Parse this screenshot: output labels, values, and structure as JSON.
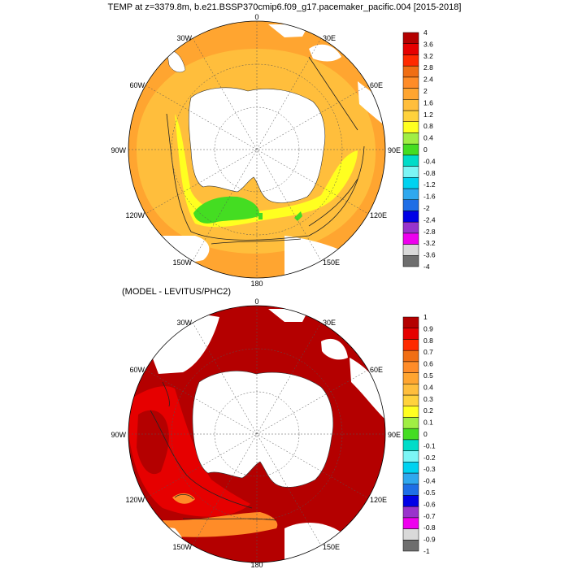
{
  "top_panel": {
    "title": "TEMP at z=3379.8m, b.e21.BSSP370cmip6.f09_g17.pacemaker_pacific.004 [2015-2018]",
    "lon_labels": {
      "n": "0",
      "ne": "30E",
      "e_up": "60E",
      "e": "90E",
      "e_dn": "120E",
      "se": "150E",
      "s": "180",
      "sw": "150W",
      "w_dn": "120W",
      "w": "90W",
      "w_up": "60W",
      "nw": "30W"
    },
    "colorbar": {
      "colors": [
        "#6e6e6e",
        "#d9d9d9",
        "#ee00ee",
        "#9933cc",
        "#0000e6",
        "#1e6ee6",
        "#2fa8ee",
        "#00d2f0",
        "#7cf5f5",
        "#00dcc8",
        "#44dd22",
        "#a0ee44",
        "#ffff20",
        "#ffd23c",
        "#ffbe3c",
        "#ffa530",
        "#ff8c28",
        "#f06e14",
        "#ff2a00",
        "#e60000",
        "#b40000"
      ],
      "labels": [
        "4",
        "3.6",
        "3.2",
        "2.8",
        "2.4",
        "2",
        "1.6",
        "1.2",
        "0.8",
        "0.4",
        "0",
        "-0.4",
        "-0.8",
        "-1.2",
        "-1.6",
        "-2",
        "-2.4",
        "-2.8",
        "-3.2",
        "-3.6",
        "-4"
      ]
    }
  },
  "bottom_panel": {
    "title": "(MODEL - LEVITUS/PHC2)",
    "lon_labels": {
      "n": "0",
      "ne": "30E",
      "e_up": "60E",
      "e": "90E",
      "e_dn": "120E",
      "se": "150E",
      "s": "180",
      "sw": "150W",
      "w_dn": "120W",
      "w": "90W",
      "w_up": "60W",
      "nw": "30W"
    },
    "colorbar": {
      "colors": [
        "#6e6e6e",
        "#d9d9d9",
        "#ee00ee",
        "#9933cc",
        "#0000e6",
        "#1e6ee6",
        "#2fa8ee",
        "#00d2f0",
        "#7cf5f5",
        "#00dcc8",
        "#44dd22",
        "#a0ee44",
        "#ffff20",
        "#ffd23c",
        "#ffbe3c",
        "#ffa530",
        "#ff8c28",
        "#f06e14",
        "#ff2a00",
        "#e60000",
        "#b40000"
      ],
      "labels": [
        "1",
        "0.9",
        "0.8",
        "0.7",
        "0.6",
        "0.5",
        "0.4",
        "0.3",
        "0.2",
        "0.1",
        "0",
        "-0.1",
        "-0.2",
        "-0.3",
        "-0.4",
        "-0.5",
        "-0.6",
        "-0.7",
        "-0.8",
        "-0.9",
        "-1"
      ]
    }
  },
  "map_colors": {
    "ocean_top": "#ffbe3c",
    "ocean_top_outer": "#ffa530",
    "band_top_inner": "#ffff20",
    "patch_green": "#44dd22",
    "ocean_bottom": "#b40000",
    "bottom_west": "#e60000",
    "bottom_orange": "#ff8c28",
    "land": "#ffffff"
  }
}
